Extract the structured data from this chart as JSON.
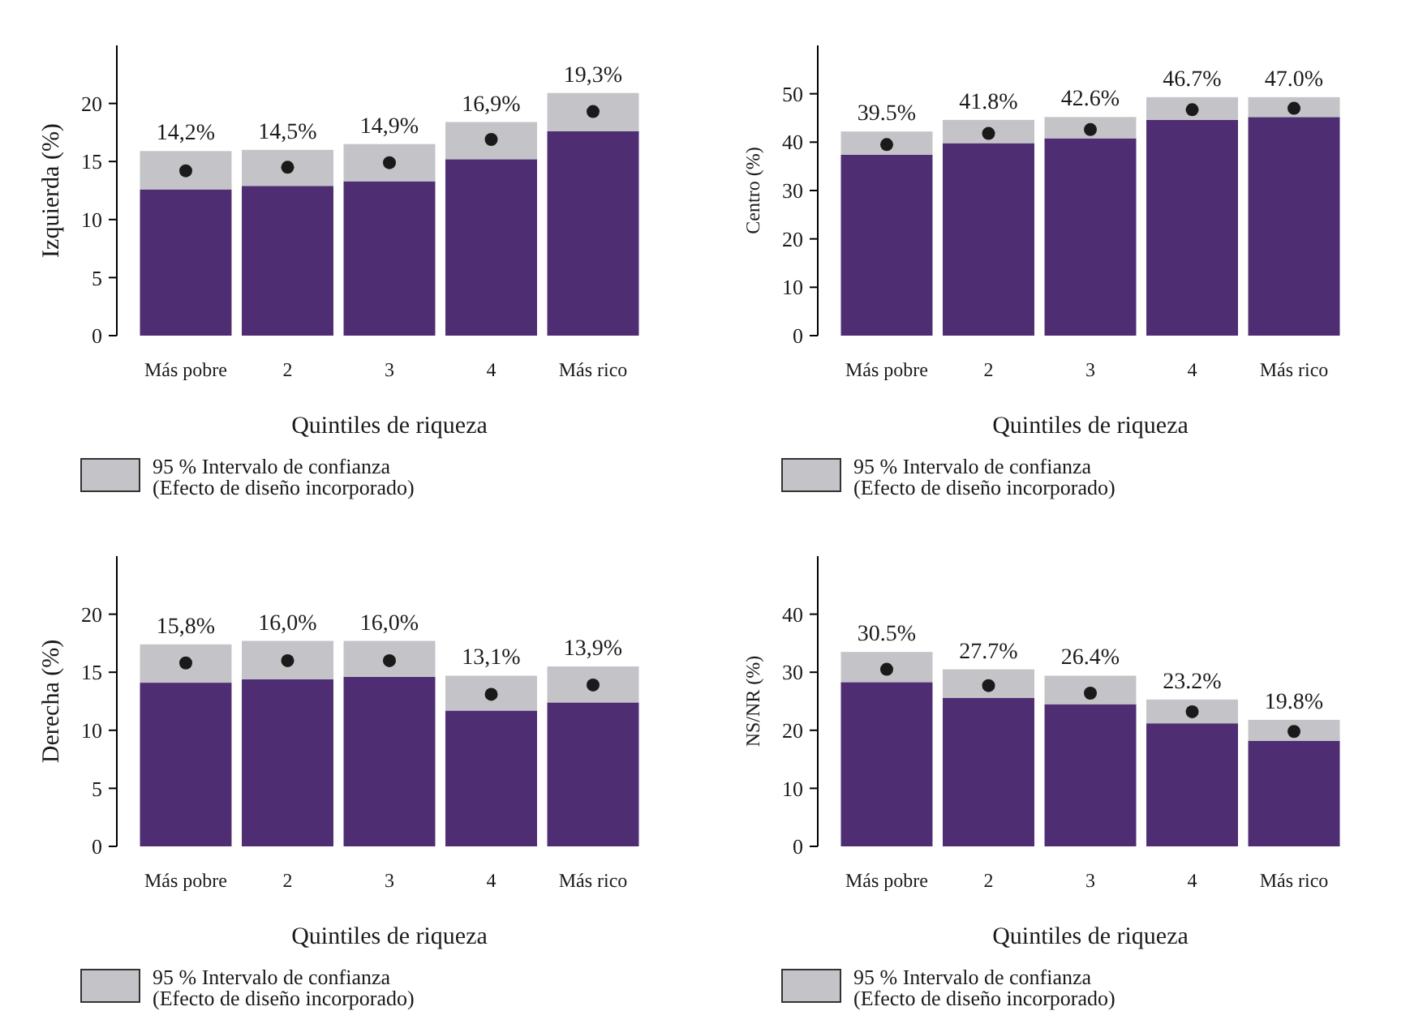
{
  "chart_data": [
    {
      "type": "bar",
      "stacked": true,
      "ylabel": "Izquierda (%)",
      "xlabel": "Quintiles de riqueza",
      "categories": [
        "Más pobre",
        "2",
        "3",
        "4",
        "Más rico"
      ],
      "ylim": [
        0,
        25
      ],
      "yticks": [
        0,
        5,
        10,
        15,
        20
      ],
      "legend": "bottom",
      "series": [
        {
          "color": "#4f2d73",
          "values": [
            12.6,
            12.9,
            13.3,
            15.2,
            17.6
          ]
        },
        {
          "name": "95 % Intervalo de confianza\n(Efecto de diseño incorporado)",
          "color": "#c4c4c8",
          "values": [
            3.3,
            3.1,
            3.2,
            3.2,
            3.3
          ]
        },
        {
          "type": "scatter",
          "color": "#1a1a1a",
          "values": [
            14.2,
            14.5,
            14.9,
            16.9,
            19.3
          ],
          "value_labels": [
            "14,2%",
            "14,5%",
            "14,9%",
            "16,9%",
            "19,3%"
          ]
        }
      ]
    },
    {
      "type": "bar",
      "stacked": true,
      "ylabel": "Centro (%)",
      "xlabel": "Quintiles de riqueza",
      "categories": [
        "Más pobre",
        "2",
        "3",
        "4",
        "Más rico"
      ],
      "ylim": [
        0,
        60
      ],
      "yticks": [
        0,
        10,
        20,
        30,
        40,
        50
      ],
      "legend": "bottom",
      "series": [
        {
          "color": "#4f2d73",
          "values": [
            37.4,
            39.8,
            40.8,
            44.6,
            45.2
          ]
        },
        {
          "name": "95 % Intervalo de confianza\n(Efecto de diseño incorporado)",
          "color": "#c4c4c8",
          "values": [
            4.8,
            4.8,
            4.4,
            4.7,
            4.1
          ]
        },
        {
          "type": "scatter",
          "color": "#1a1a1a",
          "values": [
            39.5,
            41.8,
            42.6,
            46.7,
            47.0
          ],
          "value_labels": [
            "39.5%",
            "41.8%",
            "42.6%",
            "46.7%",
            "47.0%"
          ]
        }
      ]
    },
    {
      "type": "bar",
      "stacked": true,
      "ylabel": "Derecha (%)",
      "xlabel": "Quintiles de riqueza",
      "categories": [
        "Más pobre",
        "2",
        "3",
        "4",
        "Más rico"
      ],
      "ylim": [
        0,
        25
      ],
      "yticks": [
        0,
        5,
        10,
        15,
        20
      ],
      "legend": "bottom",
      "series": [
        {
          "color": "#4f2d73",
          "values": [
            14.1,
            14.4,
            14.6,
            11.7,
            12.4
          ]
        },
        {
          "name": "95 % Intervalo de confianza\n(Efecto de diseño incorporado)",
          "color": "#c4c4c8",
          "values": [
            3.3,
            3.3,
            3.1,
            3.0,
            3.1
          ]
        },
        {
          "type": "scatter",
          "color": "#1a1a1a",
          "values": [
            15.8,
            16.0,
            16.0,
            13.1,
            13.9
          ],
          "value_labels": [
            "15,8%",
            "16,0%",
            "16,0%",
            "13,1%",
            "13,9%"
          ]
        }
      ]
    },
    {
      "type": "bar",
      "stacked": true,
      "ylabel": "NS/NR (%)",
      "xlabel": "Quintiles de riqueza",
      "categories": [
        "Más pobre",
        "2",
        "3",
        "4",
        "Más rico"
      ],
      "ylim": [
        0,
        50
      ],
      "yticks": [
        0,
        10,
        20,
        30,
        40
      ],
      "legend": "bottom",
      "series": [
        {
          "color": "#4f2d73",
          "values": [
            28.3,
            25.6,
            24.5,
            21.2,
            18.2
          ]
        },
        {
          "name": "95 % Intervalo de confianza\n(Efecto de diseño incorporado)",
          "color": "#c4c4c8",
          "values": [
            5.2,
            4.9,
            4.9,
            4.1,
            3.6
          ]
        },
        {
          "type": "scatter",
          "color": "#1a1a1a",
          "values": [
            30.5,
            27.7,
            26.4,
            23.2,
            19.8
          ],
          "value_labels": [
            "30.5%",
            "27.7%",
            "26.4%",
            "23.2%",
            "19.8%"
          ]
        }
      ]
    }
  ]
}
